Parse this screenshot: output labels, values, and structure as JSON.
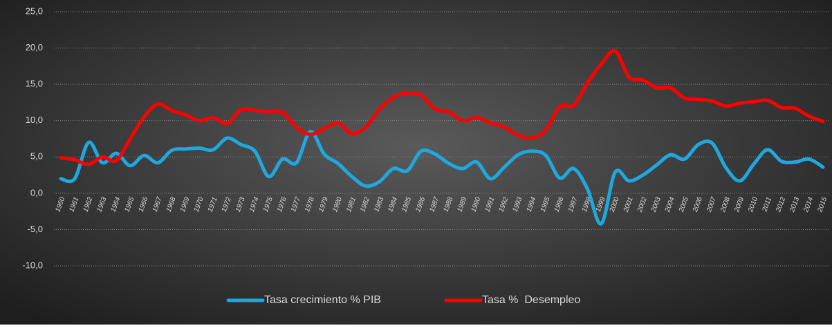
{
  "chart_data": {
    "type": "line",
    "categories": [
      "1960",
      "1961",
      "1962",
      "1963",
      "1964",
      "1965",
      "1966",
      "1967",
      "1968",
      "1969",
      "1970",
      "1971",
      "1972",
      "1973",
      "1974",
      "1975",
      "1976",
      "1977",
      "1978",
      "1979",
      "1980",
      "1981",
      "1982",
      "1983",
      "1984",
      "1985",
      "1986",
      "1987",
      "1988",
      "1989",
      "1990",
      "1991",
      "1992",
      "1993",
      "1994",
      "1995",
      "1996",
      "1997",
      "1998",
      "1999",
      "2000",
      "2001",
      "2002",
      "2003",
      "2004",
      "2005",
      "2006",
      "2007",
      "2008",
      "2009",
      "2010",
      "2011",
      "2012",
      "2013",
      "2014",
      "2015"
    ],
    "series": [
      {
        "name": "Tasa crecimiento % PIB",
        "color": "#1fa8e0",
        "values": [
          2.0,
          2.0,
          7.0,
          4.2,
          5.5,
          3.8,
          5.2,
          4.2,
          5.9,
          6.1,
          6.2,
          6.0,
          7.6,
          6.7,
          5.8,
          2.3,
          4.7,
          4.2,
          8.5,
          5.4,
          4.1,
          2.3,
          1.0,
          1.6,
          3.4,
          3.1,
          5.8,
          5.4,
          4.1,
          3.4,
          4.3,
          2.0,
          3.6,
          5.3,
          5.8,
          5.2,
          2.1,
          3.4,
          0.6,
          -4.2,
          2.9,
          1.7,
          2.5,
          3.9,
          5.3,
          4.7,
          6.7,
          6.9,
          3.5,
          1.7,
          4.0,
          6.0,
          4.4,
          4.3,
          4.7,
          3.6
        ]
      },
      {
        "name": "Tasa %  Desempleo",
        "color": "#ff0000",
        "values": [
          4.9,
          4.6,
          4.0,
          5.0,
          4.5,
          7.5,
          10.5,
          12.3,
          11.4,
          10.8,
          10.0,
          10.4,
          9.6,
          11.5,
          11.4,
          11.2,
          11.1,
          9.1,
          8.1,
          8.9,
          9.7,
          8.2,
          9.1,
          11.6,
          13.2,
          13.8,
          13.5,
          11.6,
          11.2,
          10.0,
          10.4,
          9.7,
          9.1,
          8.0,
          7.6,
          8.7,
          11.9,
          12.1,
          15.2,
          17.8,
          19.6,
          16.0,
          15.6,
          14.5,
          14.5,
          13.1,
          12.9,
          12.7,
          12.0,
          12.4,
          12.6,
          12.8,
          11.8,
          11.7,
          10.6,
          9.9
        ]
      }
    ],
    "ylim": [
      -10,
      25
    ],
    "yticks": [
      {
        "value": -10,
        "label": "-10,0"
      },
      {
        "value": -5,
        "label": "-5,0"
      },
      {
        "value": 0,
        "label": "0,0"
      },
      {
        "value": 5,
        "label": "5,0"
      },
      {
        "value": 10,
        "label": "10,0"
      },
      {
        "value": 15,
        "label": "15,0"
      },
      {
        "value": 20,
        "label": "20,0"
      },
      {
        "value": 25,
        "label": "25,0"
      }
    ],
    "grid": true,
    "legend": "bottom"
  }
}
